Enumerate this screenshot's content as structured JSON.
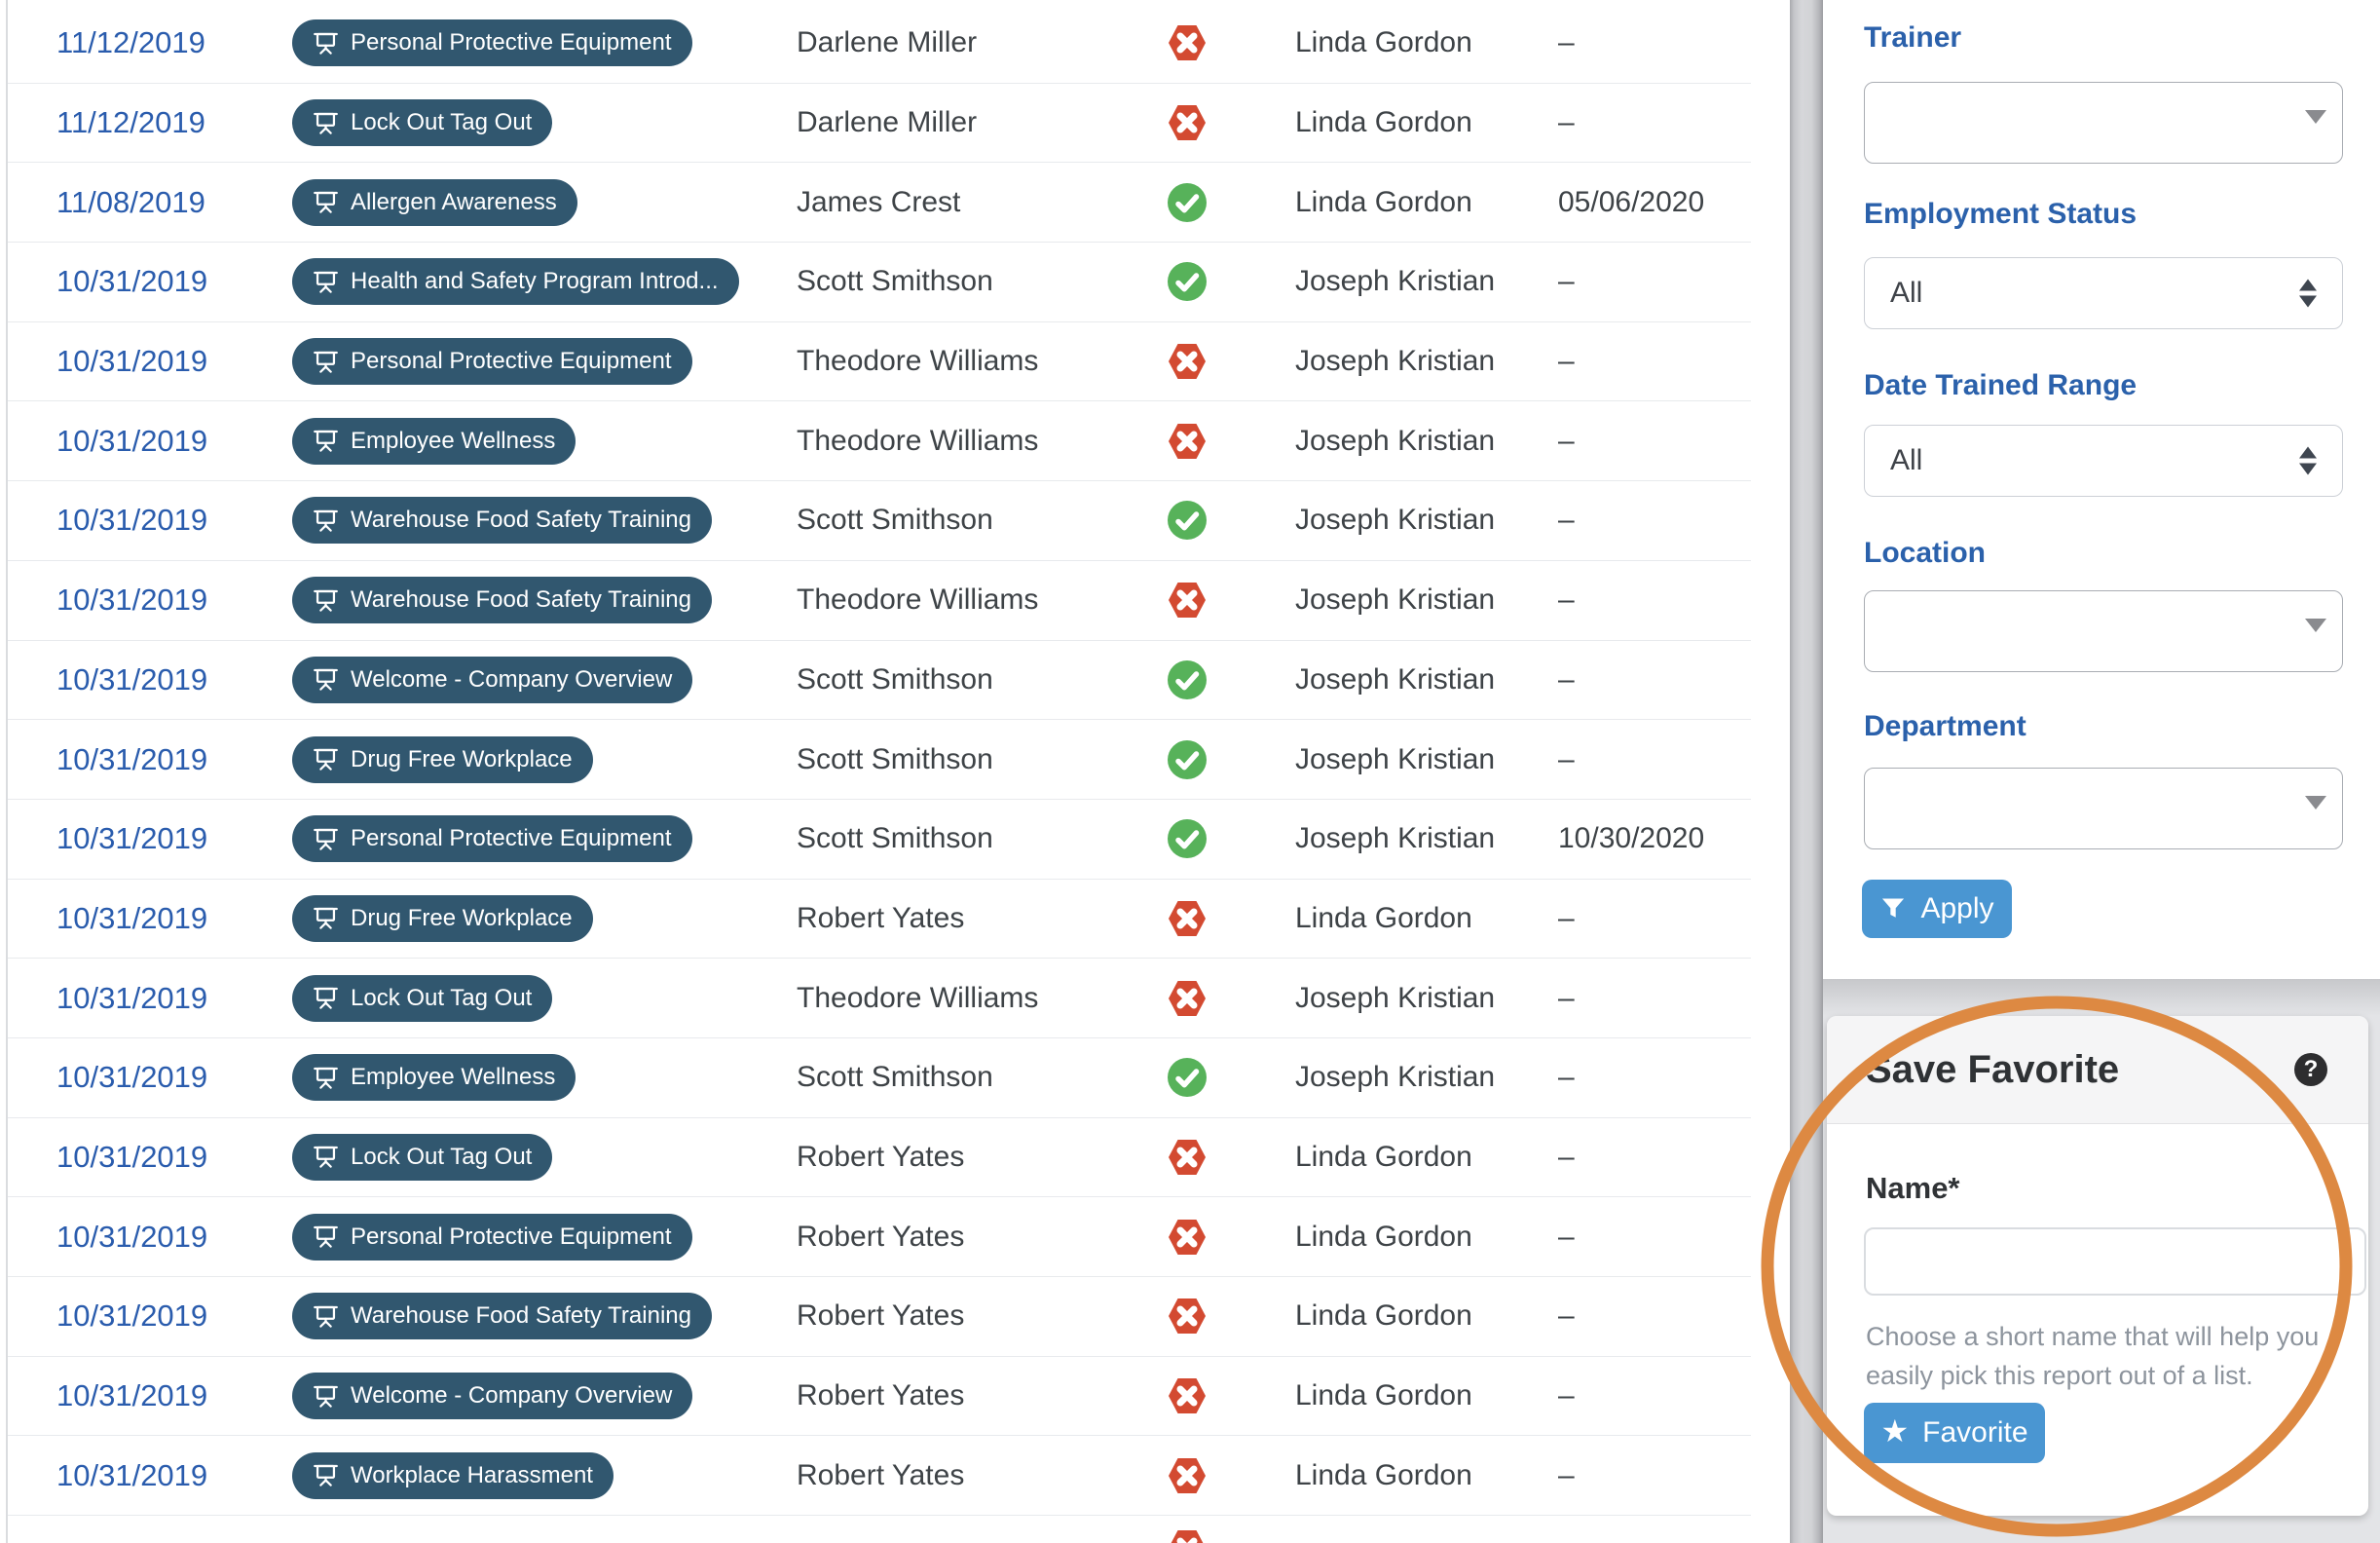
{
  "table": {
    "rows": [
      {
        "date": "11/12/2019",
        "course": "Personal Protective Equipment",
        "employee": "Darlene Miller",
        "status": "fail",
        "trainer": "Linda Gordon",
        "expires": "–"
      },
      {
        "date": "11/12/2019",
        "course": "Lock Out Tag Out",
        "employee": "Darlene Miller",
        "status": "fail",
        "trainer": "Linda Gordon",
        "expires": "–"
      },
      {
        "date": "11/08/2019",
        "course": "Allergen Awareness",
        "employee": "James Crest",
        "status": "pass",
        "trainer": "Linda Gordon",
        "expires": "05/06/2020"
      },
      {
        "date": "10/31/2019",
        "course": "Health and Safety Program Introd...",
        "employee": "Scott Smithson",
        "status": "pass",
        "trainer": "Joseph Kristian",
        "expires": "–"
      },
      {
        "date": "10/31/2019",
        "course": "Personal Protective Equipment",
        "employee": "Theodore Williams",
        "status": "fail",
        "trainer": "Joseph Kristian",
        "expires": "–"
      },
      {
        "date": "10/31/2019",
        "course": "Employee Wellness",
        "employee": "Theodore Williams",
        "status": "fail",
        "trainer": "Joseph Kristian",
        "expires": "–"
      },
      {
        "date": "10/31/2019",
        "course": "Warehouse Food Safety Training",
        "employee": "Scott Smithson",
        "status": "pass",
        "trainer": "Joseph Kristian",
        "expires": "–"
      },
      {
        "date": "10/31/2019",
        "course": "Warehouse Food Safety Training",
        "employee": "Theodore Williams",
        "status": "fail",
        "trainer": "Joseph Kristian",
        "expires": "–"
      },
      {
        "date": "10/31/2019",
        "course": "Welcome - Company Overview",
        "employee": "Scott Smithson",
        "status": "pass",
        "trainer": "Joseph Kristian",
        "expires": "–"
      },
      {
        "date": "10/31/2019",
        "course": "Drug Free Workplace",
        "employee": "Scott Smithson",
        "status": "pass",
        "trainer": "Joseph Kristian",
        "expires": "–"
      },
      {
        "date": "10/31/2019",
        "course": "Personal Protective Equipment",
        "employee": "Scott Smithson",
        "status": "pass",
        "trainer": "Joseph Kristian",
        "expires": "10/30/2020"
      },
      {
        "date": "10/31/2019",
        "course": "Drug Free Workplace",
        "employee": "Robert Yates",
        "status": "fail",
        "trainer": "Linda Gordon",
        "expires": "–"
      },
      {
        "date": "10/31/2019",
        "course": "Lock Out Tag Out",
        "employee": "Theodore Williams",
        "status": "fail",
        "trainer": "Joseph Kristian",
        "expires": "–"
      },
      {
        "date": "10/31/2019",
        "course": "Employee Wellness",
        "employee": "Scott Smithson",
        "status": "pass",
        "trainer": "Joseph Kristian",
        "expires": "–"
      },
      {
        "date": "10/31/2019",
        "course": "Lock Out Tag Out",
        "employee": "Robert Yates",
        "status": "fail",
        "trainer": "Linda Gordon",
        "expires": "–"
      },
      {
        "date": "10/31/2019",
        "course": "Personal Protective Equipment",
        "employee": "Robert Yates",
        "status": "fail",
        "trainer": "Linda Gordon",
        "expires": "–"
      },
      {
        "date": "10/31/2019",
        "course": "Warehouse Food Safety Training",
        "employee": "Robert Yates",
        "status": "fail",
        "trainer": "Linda Gordon",
        "expires": "–"
      },
      {
        "date": "10/31/2019",
        "course": "Welcome - Company Overview",
        "employee": "Robert Yates",
        "status": "fail",
        "trainer": "Linda Gordon",
        "expires": "–"
      },
      {
        "date": "10/31/2019",
        "course": "Workplace Harassment",
        "employee": "Robert Yates",
        "status": "fail",
        "trainer": "Linda Gordon",
        "expires": "–"
      }
    ],
    "partial_row_status": "fail"
  },
  "filters": {
    "trainer_label": "Trainer",
    "trainer_value": "",
    "employment_status_label": "Employment Status",
    "employment_status_value": "All",
    "date_trained_label": "Date Trained Range",
    "date_trained_value": "All",
    "location_label": "Location",
    "location_value": "",
    "department_label": "Department",
    "department_value": "",
    "apply_label": "Apply"
  },
  "save_favorite": {
    "title": "Save Favorite",
    "help_icon": "?",
    "name_label": "Name*",
    "name_value": "",
    "helper_text": "Choose a short name that will help you easily pick this report out of a list.",
    "favorite_label": "Favorite"
  },
  "colors": {
    "link_blue": "#2a5cad",
    "label_blue": "#2b61ab",
    "pill_navy": "#31576f",
    "pass_green": "#57b25a",
    "fail_red": "#d34a31",
    "button_blue": "#4a96d2",
    "annotation_orange": "#dd8942"
  }
}
